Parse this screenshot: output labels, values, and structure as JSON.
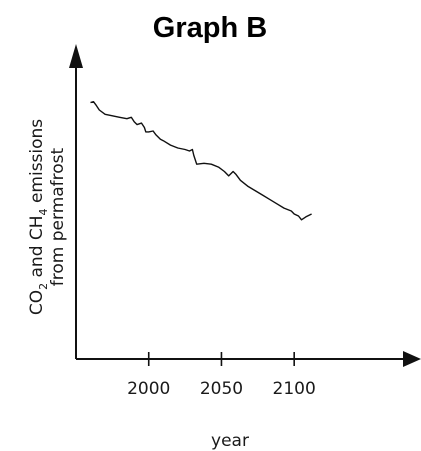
{
  "chart_data": {
    "type": "line",
    "title": "Graph B",
    "xlabel": "year",
    "ylabel": {
      "line1_parts": [
        "CO",
        "2",
        " and CH",
        "4",
        " emissions"
      ],
      "line2": "from permafrost"
    },
    "xticks": [
      2000,
      2050,
      2100
    ],
    "xlim": [
      1950,
      2170
    ],
    "ylim": [
      0,
      100
    ],
    "y_ticks_labeled": false,
    "grid": false,
    "series": [
      {
        "x": [
          1960,
          1962,
          1964,
          1966,
          1970,
          1975,
          1980,
          1985,
          1988,
          1990,
          1992,
          1995,
          1997,
          1998,
          2000,
          2003,
          2005,
          2008,
          2010,
          2015,
          2020,
          2025,
          2028,
          2030,
          2031,
          2033,
          2038,
          2043,
          2048,
          2052,
          2055,
          2058,
          2060,
          2063,
          2068,
          2073,
          2078,
          2083,
          2088,
          2093,
          2098,
          2100,
          2103,
          2105,
          2108,
          2112
        ],
        "y": [
          87.5,
          87.8,
          86.5,
          85.0,
          83.5,
          83.0,
          82.5,
          82.0,
          82.5,
          81.0,
          80.0,
          80.5,
          79.0,
          77.5,
          77.5,
          77.8,
          76.5,
          75.0,
          74.5,
          73.0,
          72.0,
          71.5,
          71.0,
          71.5,
          69.5,
          66.5,
          66.8,
          66.5,
          65.5,
          64.0,
          62.5,
          64.0,
          63.0,
          61.0,
          59.0,
          57.5,
          56.0,
          54.5,
          53.0,
          51.5,
          50.5,
          49.5,
          48.8,
          47.5,
          48.5,
          49.5
        ]
      }
    ]
  },
  "colors": {
    "axis": "#111111",
    "line": "#111111",
    "text": "#1a1a1a"
  }
}
